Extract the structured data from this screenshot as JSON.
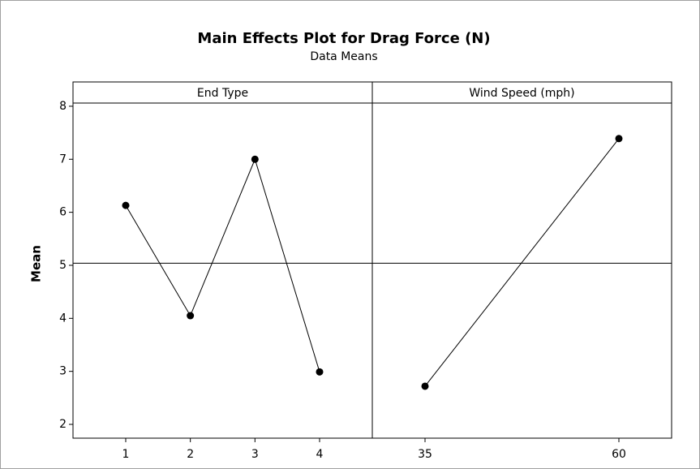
{
  "chart_data": {
    "type": "line",
    "title": "Main Effects Plot for Drag Force (N)",
    "subtitle": "Data Means",
    "ylabel": "Mean",
    "ylim": [
      1.74,
      8.06
    ],
    "yticks": [
      2,
      3,
      4,
      5,
      6,
      7,
      8
    ],
    "reference_line": 5.04,
    "color": "#000000",
    "panels": [
      {
        "name": "End Type",
        "categories": [
          "1",
          "2",
          "3",
          "4"
        ],
        "values": [
          6.13,
          4.05,
          7.0,
          2.99
        ]
      },
      {
        "name": "Wind Speed (mph)",
        "categories": [
          "35",
          "60"
        ],
        "values": [
          2.72,
          7.39
        ]
      }
    ]
  }
}
